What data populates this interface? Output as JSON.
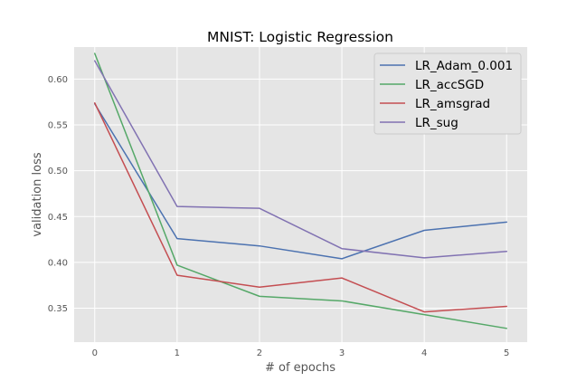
{
  "chart_data": {
    "type": "line",
    "title": "MNIST: Logistic Regression",
    "xlabel": "# of epochs",
    "ylabel": "validation loss",
    "x": [
      0,
      1,
      2,
      3,
      4,
      5
    ],
    "xticks": [
      "0",
      "1",
      "2",
      "3",
      "4",
      "5"
    ],
    "yticks": [
      "0.35",
      "0.40",
      "0.45",
      "0.50",
      "0.55",
      "0.60"
    ],
    "xlim": [
      -0.25,
      5.25
    ],
    "ylim": [
      0.313,
      0.635
    ],
    "grid": true,
    "legend_position": "top-right",
    "series": [
      {
        "name": "LR_Adam_0.001",
        "color": "#4c72b0",
        "values": [
          0.573,
          0.426,
          0.418,
          0.404,
          0.435,
          0.444
        ]
      },
      {
        "name": "LR_accSGD",
        "color": "#55a868",
        "values": [
          0.628,
          0.397,
          0.363,
          0.358,
          0.343,
          0.328
        ]
      },
      {
        "name": "LR_amsgrad",
        "color": "#c44e52",
        "values": [
          0.574,
          0.386,
          0.373,
          0.383,
          0.346,
          0.352
        ]
      },
      {
        "name": "LR_sug",
        "color": "#8172b2",
        "values": [
          0.62,
          0.461,
          0.459,
          0.415,
          0.405,
          0.412
        ]
      }
    ]
  }
}
